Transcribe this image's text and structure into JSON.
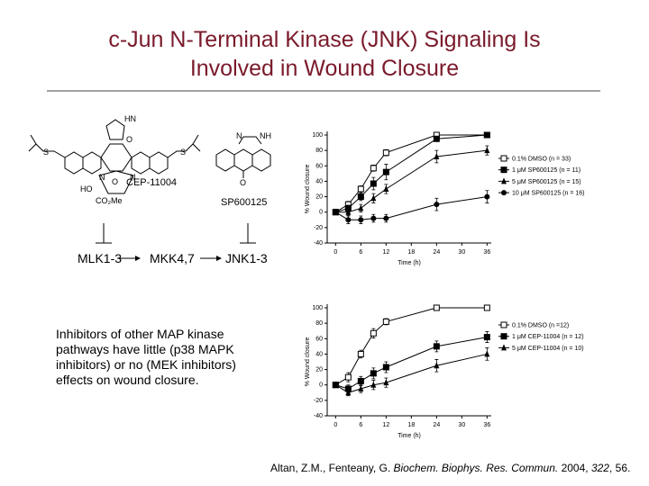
{
  "title": [
    "c-Jun N-Terminal Kinase (JNK) Signaling Is",
    "Involved in Wound Closure"
  ],
  "structures": {
    "cep_label": "CEP-11004",
    "cep_atoms": [
      "S",
      "S",
      "N",
      "O",
      "N",
      "HN",
      "O",
      "HO",
      "CO₂Me"
    ],
    "sp_label": "SP600125",
    "sp_atoms": [
      "N",
      "NH",
      "O"
    ]
  },
  "pathway": [
    "MLK1-3",
    "MKK4,7",
    "JNK1-3"
  ],
  "text": [
    "Inhibitors of other MAP kinase",
    "pathways have little (p38 MAPK",
    "inhibitors) or no (MEK inhibitors)",
    "effects on wound closure."
  ],
  "citation": [
    "Altan, Z.M., Fenteany, G. ",
    "Biochem. Biophys. Res. Commun.",
    " 2004, ",
    "322",
    ", 56."
  ],
  "chart_data": [
    {
      "type": "line",
      "x": [
        0,
        3,
        6,
        9,
        12,
        24,
        36
      ],
      "xlim": [
        -2,
        37
      ],
      "xticks": [
        0,
        6,
        12,
        18,
        24,
        30,
        36
      ],
      "ylim": [
        -40,
        100
      ],
      "yticks": [
        -40,
        -20,
        0,
        20,
        40,
        60,
        80,
        100
      ],
      "x_label": "Time (h)",
      "y_label": "% Wound closure",
      "series": [
        {
          "name": "0.1% DMSO (n = 33)",
          "color": "#000000",
          "marker": "open-square",
          "values": [
            0,
            10,
            30,
            57,
            77,
            100,
            100
          ],
          "errors": [
            0,
            4,
            4,
            4,
            4,
            2,
            2
          ]
        },
        {
          "name": "1 μM SP600125 (n = 11)",
          "color": "#000000",
          "marker": "square",
          "values": [
            0,
            5,
            20,
            37,
            52,
            95,
            100
          ],
          "errors": [
            0,
            4,
            5,
            8,
            10,
            3,
            2
          ]
        },
        {
          "name": "5 μM SP600125 (n = 15)",
          "color": "#000000",
          "marker": "triangle",
          "values": [
            0,
            0,
            5,
            18,
            30,
            72,
            80
          ],
          "errors": [
            0,
            4,
            5,
            6,
            6,
            8,
            6
          ]
        },
        {
          "name": "10 μM SP600125 (n = 16)",
          "color": "#000000",
          "marker": "circle",
          "values": [
            0,
            -10,
            -10,
            -8,
            -8,
            10,
            20
          ],
          "errors": [
            0,
            5,
            5,
            5,
            5,
            8,
            8
          ]
        }
      ]
    },
    {
      "type": "line",
      "x": [
        0,
        3,
        6,
        9,
        12,
        24,
        36
      ],
      "xlim": [
        -2,
        37
      ],
      "xticks": [
        0,
        6,
        12,
        18,
        24,
        30,
        36
      ],
      "ylim": [
        -40,
        100
      ],
      "yticks": [
        -40,
        -20,
        0,
        20,
        40,
        60,
        80,
        100
      ],
      "x_label": "Time (h)",
      "y_label": "% Wound closure",
      "series": [
        {
          "name": "0.1% DMSO (n =12)",
          "color": "#000000",
          "marker": "open-square",
          "values": [
            0,
            10,
            40,
            67,
            82,
            100,
            100
          ],
          "errors": [
            0,
            6,
            5,
            6,
            4,
            1,
            1
          ]
        },
        {
          "name": "1 μM CEP-11004 (n = 12)",
          "color": "#000000",
          "marker": "square",
          "values": [
            0,
            -5,
            5,
            15,
            23,
            50,
            62
          ],
          "errors": [
            0,
            5,
            6,
            7,
            7,
            7,
            7
          ]
        },
        {
          "name": "5 μM CEP-11004 (n = 10)",
          "color": "#000000",
          "marker": "triangle",
          "values": [
            0,
            -10,
            -5,
            0,
            3,
            25,
            40
          ],
          "errors": [
            0,
            4,
            5,
            6,
            6,
            8,
            8
          ]
        }
      ]
    }
  ]
}
